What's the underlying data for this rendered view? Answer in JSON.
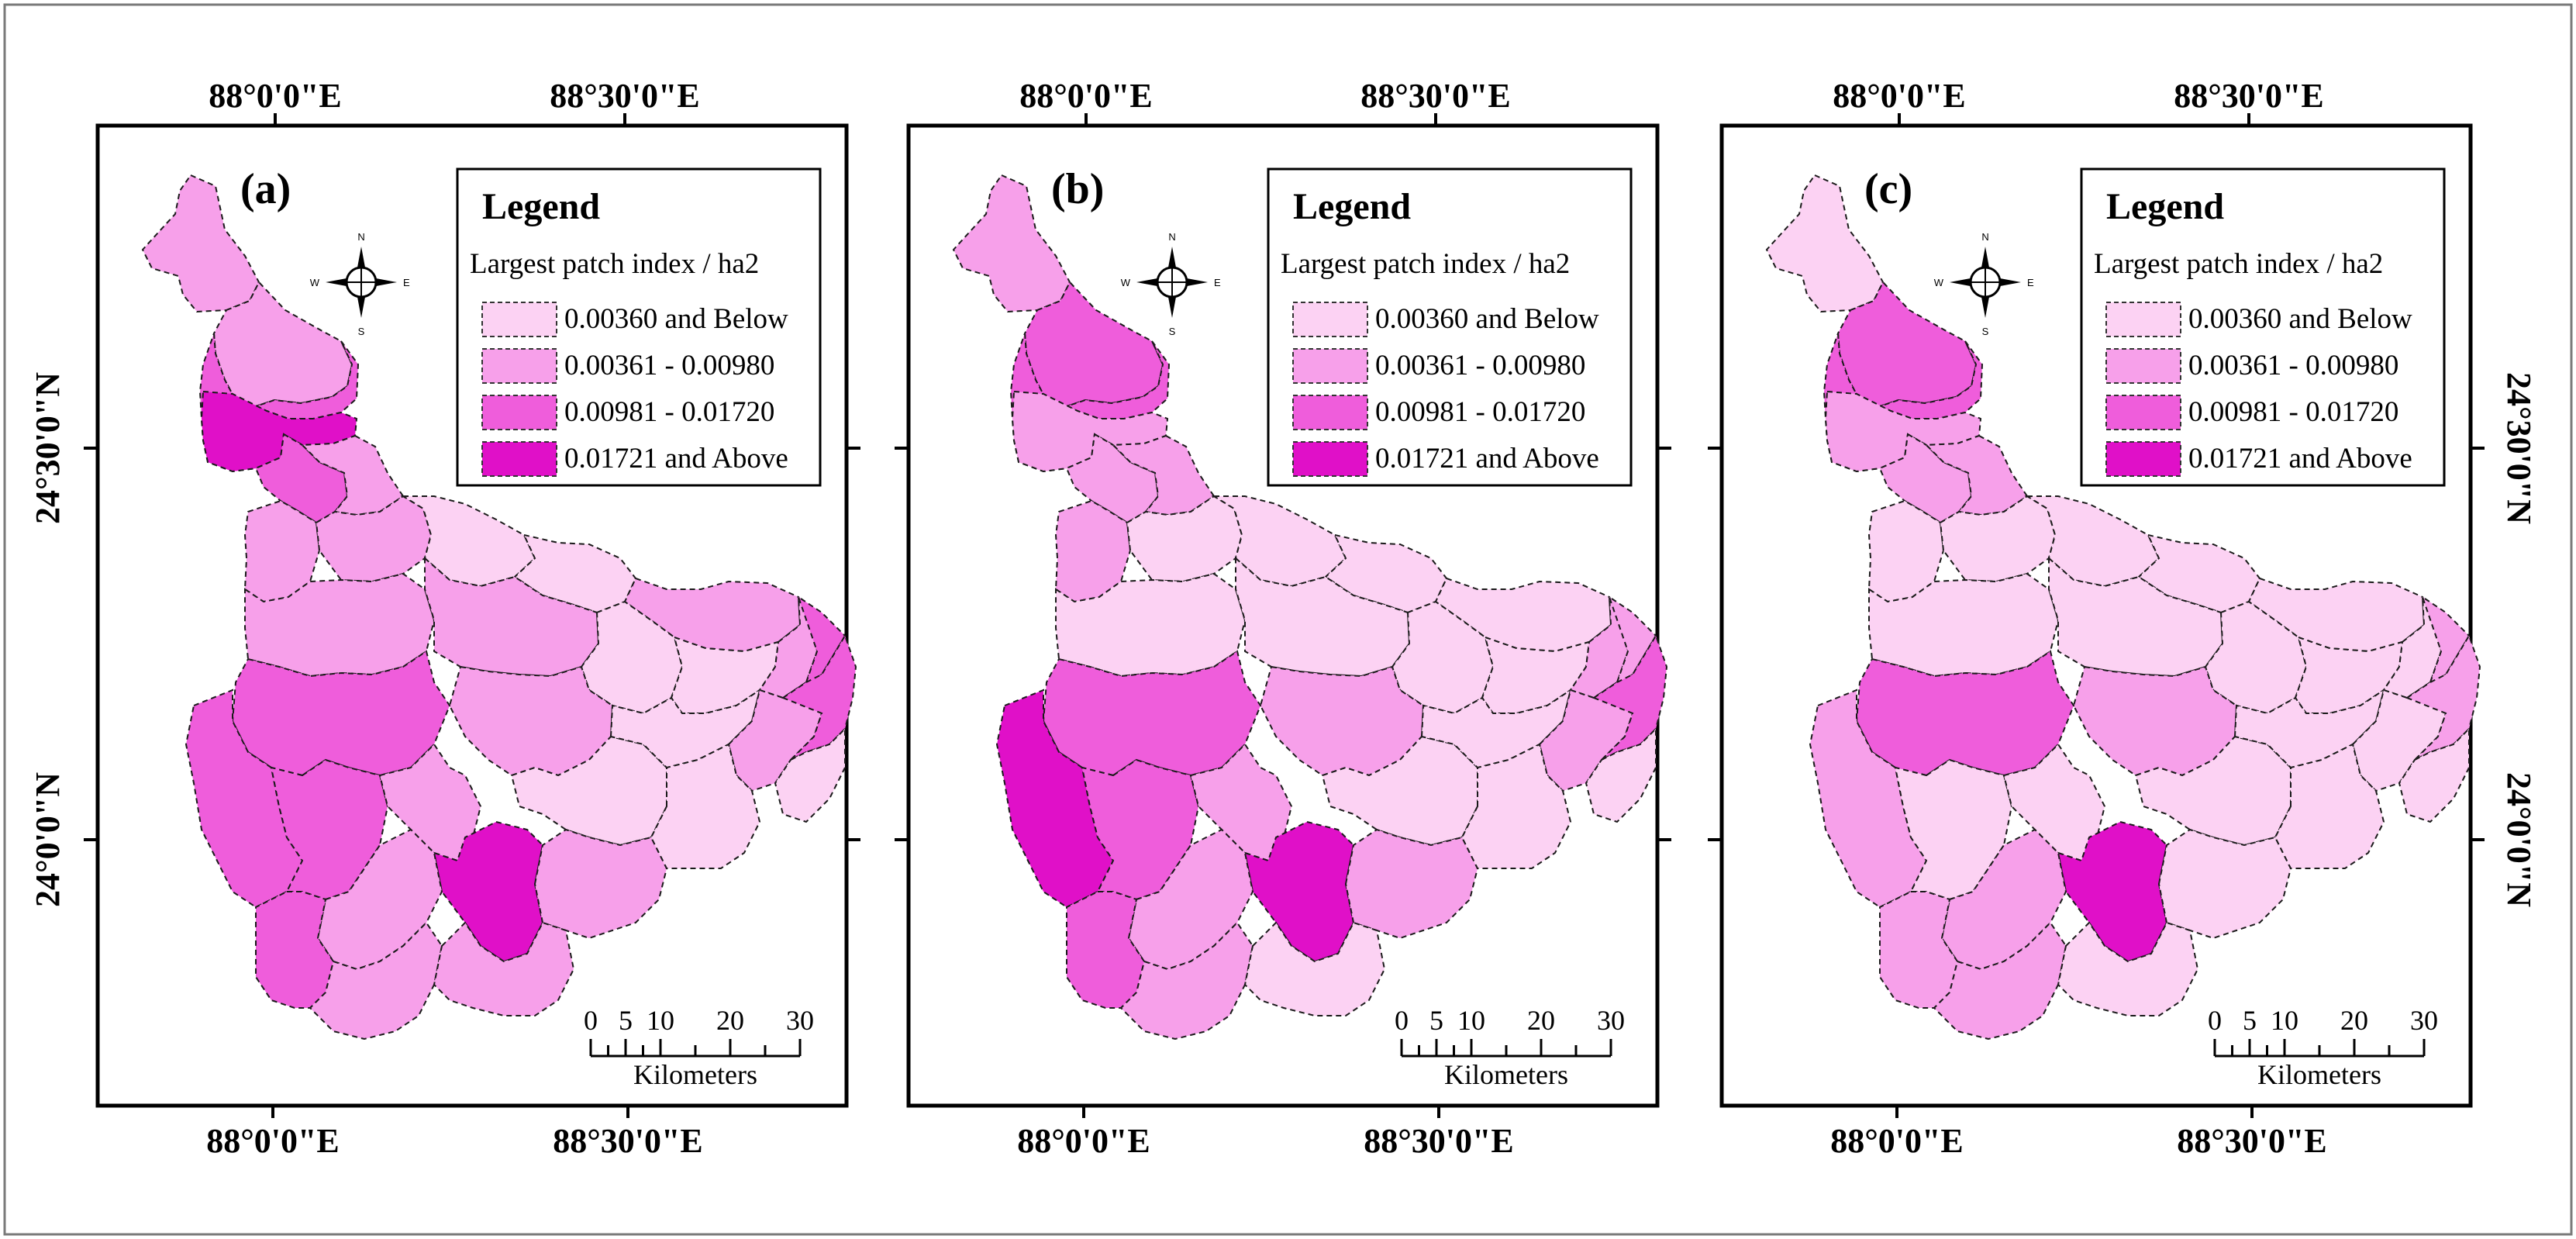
{
  "figure": {
    "panels": [
      {
        "label": "(a)",
        "fills": [
          2,
          2,
          3,
          3,
          4,
          3,
          2,
          2,
          2,
          1,
          1,
          2,
          2,
          2,
          1,
          1,
          2,
          2,
          3,
          3,
          3,
          2,
          1,
          1,
          2,
          3,
          3,
          1,
          4,
          2,
          2,
          1,
          3,
          2,
          2
        ]
      },
      {
        "label": "(b)",
        "fills": [
          2,
          3,
          3,
          3,
          2,
          2,
          2,
          2,
          1,
          1,
          1,
          1,
          1,
          1,
          1,
          1,
          2,
          2,
          3,
          4,
          3,
          2,
          1,
          1,
          2,
          2,
          3,
          1,
          4,
          2,
          2,
          1,
          3,
          2,
          1
        ]
      },
      {
        "label": "(c)",
        "fills": [
          1,
          3,
          3,
          3,
          2,
          2,
          2,
          1,
          1,
          1,
          1,
          1,
          1,
          1,
          1,
          1,
          1,
          2,
          3,
          2,
          1,
          1,
          1,
          1,
          1,
          2,
          2,
          1,
          4,
          2,
          1,
          1,
          2,
          2,
          1
        ]
      }
    ],
    "coordinates": {
      "top_left": "88°0'0\"E",
      "top_right": "88°30'0\"E",
      "bottom_left": "88°0'0\"E",
      "bottom_right": "88°30'0\"E",
      "lat_upper": "24°30'0\"N",
      "lat_lower": "24°0'0\"N"
    },
    "legend": {
      "title": "Legend",
      "subtitle": "Largest patch index / ha2",
      "classes": [
        {
          "label": "0.00360 and Below",
          "color": "#fcd2f3"
        },
        {
          "label": "0.00361 - 0.00980",
          "color": "#f7a0ea"
        },
        {
          "label": "0.00981 - 0.01720",
          "color": "#ef5ddb"
        },
        {
          "label": "0.01721 and Above",
          "color": "#e010c8"
        }
      ]
    },
    "scale_bar": {
      "ticks": [
        "0",
        "5",
        "10",
        "20",
        "30"
      ],
      "unit": "Kilometers"
    },
    "north_arrow": {
      "n": "N",
      "s": "S",
      "e": "E",
      "w": "W"
    }
  }
}
